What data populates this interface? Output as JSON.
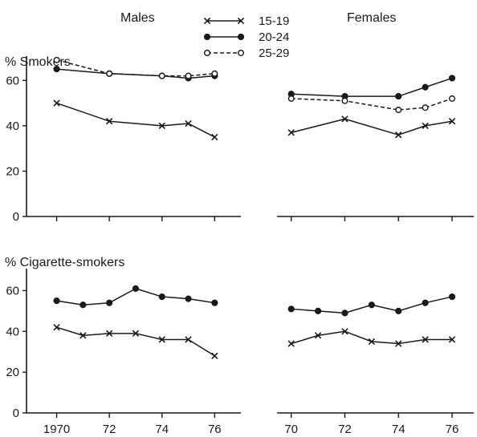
{
  "chart_data": {
    "type": "line",
    "headings": {
      "left": "Males",
      "right": "Females"
    },
    "legend": {
      "placement": "top-center",
      "entries": [
        {
          "name": "15-19",
          "marker": "x",
          "dash": "solid"
        },
        {
          "name": "20-24",
          "marker": "filled-circle",
          "dash": "solid"
        },
        {
          "name": "25-29",
          "marker": "open-circle",
          "dash": "dashed"
        }
      ]
    },
    "colors": {
      "ink": "#1a1a1a",
      "background": "#ffffff"
    },
    "panels": [
      {
        "ylabel": "% Smokers",
        "ylim": [
          0,
          70
        ],
        "yticks": [
          0,
          20,
          40,
          60
        ],
        "groups": [
          {
            "sex": "Males",
            "xlim": [
              1969.8,
              1976.6
            ],
            "xticks": [
              1970,
              1972,
              1974,
              1976
            ],
            "xticklabels": [
              "1970",
              "72",
              "74",
              "76"
            ],
            "series": [
              {
                "name": "15-19",
                "x": [
                  1970,
                  1972,
                  1974,
                  1975,
                  1976
                ],
                "values": [
                  50,
                  42,
                  40,
                  41,
                  35
                ]
              },
              {
                "name": "20-24",
                "x": [
                  1970,
                  1972,
                  1974,
                  1975,
                  1976
                ],
                "values": [
                  65,
                  63,
                  62,
                  61,
                  62
                ]
              },
              {
                "name": "25-29",
                "x": [
                  1970,
                  1972,
                  1974,
                  1975,
                  1976
                ],
                "values": [
                  69,
                  63,
                  62,
                  62,
                  63
                ]
              }
            ]
          },
          {
            "sex": "Females",
            "xlim": [
              1969.8,
              1976.6
            ],
            "xticks": [
              1970,
              1972,
              1974,
              1976
            ],
            "xticklabels": [
              "70",
              "72",
              "74",
              "76"
            ],
            "series": [
              {
                "name": "15-19",
                "x": [
                  1970,
                  1972,
                  1974,
                  1975,
                  1976
                ],
                "values": [
                  37,
                  43,
                  36,
                  40,
                  42
                ]
              },
              {
                "name": "20-24",
                "x": [
                  1970,
                  1972,
                  1974,
                  1975,
                  1976
                ],
                "values": [
                  54,
                  53,
                  53,
                  57,
                  61
                ]
              },
              {
                "name": "25-29",
                "x": [
                  1970,
                  1972,
                  1974,
                  1975,
                  1976
                ],
                "values": [
                  52,
                  51,
                  47,
                  48,
                  52
                ]
              }
            ]
          }
        ]
      },
      {
        "ylabel": "% Cigarette-smokers",
        "ylim": [
          0,
          70
        ],
        "yticks": [
          0,
          20,
          40,
          60
        ],
        "groups": [
          {
            "sex": "Males",
            "xlim": [
              1969.8,
              1976.6
            ],
            "xticks": [
              1970,
              1972,
              1974,
              1976
            ],
            "xticklabels": [
              "1970",
              "72",
              "74",
              "76"
            ],
            "series": [
              {
                "name": "15-19",
                "x": [
                  1970,
                  1971,
                  1972,
                  1973,
                  1974,
                  1975,
                  1976
                ],
                "values": [
                  42,
                  38,
                  39,
                  39,
                  36,
                  36,
                  28
                ]
              },
              {
                "name": "20-24",
                "x": [
                  1970,
                  1971,
                  1972,
                  1973,
                  1974,
                  1975,
                  1976
                ],
                "values": [
                  55,
                  53,
                  54,
                  61,
                  57,
                  56,
                  54
                ]
              }
            ]
          },
          {
            "sex": "Females",
            "xlim": [
              1969.8,
              1976.6
            ],
            "xticks": [
              1970,
              1972,
              1974,
              1976
            ],
            "xticklabels": [
              "70",
              "72",
              "74",
              "76"
            ],
            "series": [
              {
                "name": "15-19",
                "x": [
                  1970,
                  1971,
                  1972,
                  1973,
                  1974,
                  1975,
                  1976
                ],
                "values": [
                  34,
                  38,
                  40,
                  35,
                  34,
                  36,
                  36
                ]
              },
              {
                "name": "20-24",
                "x": [
                  1970,
                  1971,
                  1972,
                  1973,
                  1974,
                  1975,
                  1976
                ],
                "values": [
                  51,
                  50,
                  49,
                  53,
                  50,
                  54,
                  57
                ]
              }
            ]
          }
        ]
      }
    ]
  }
}
